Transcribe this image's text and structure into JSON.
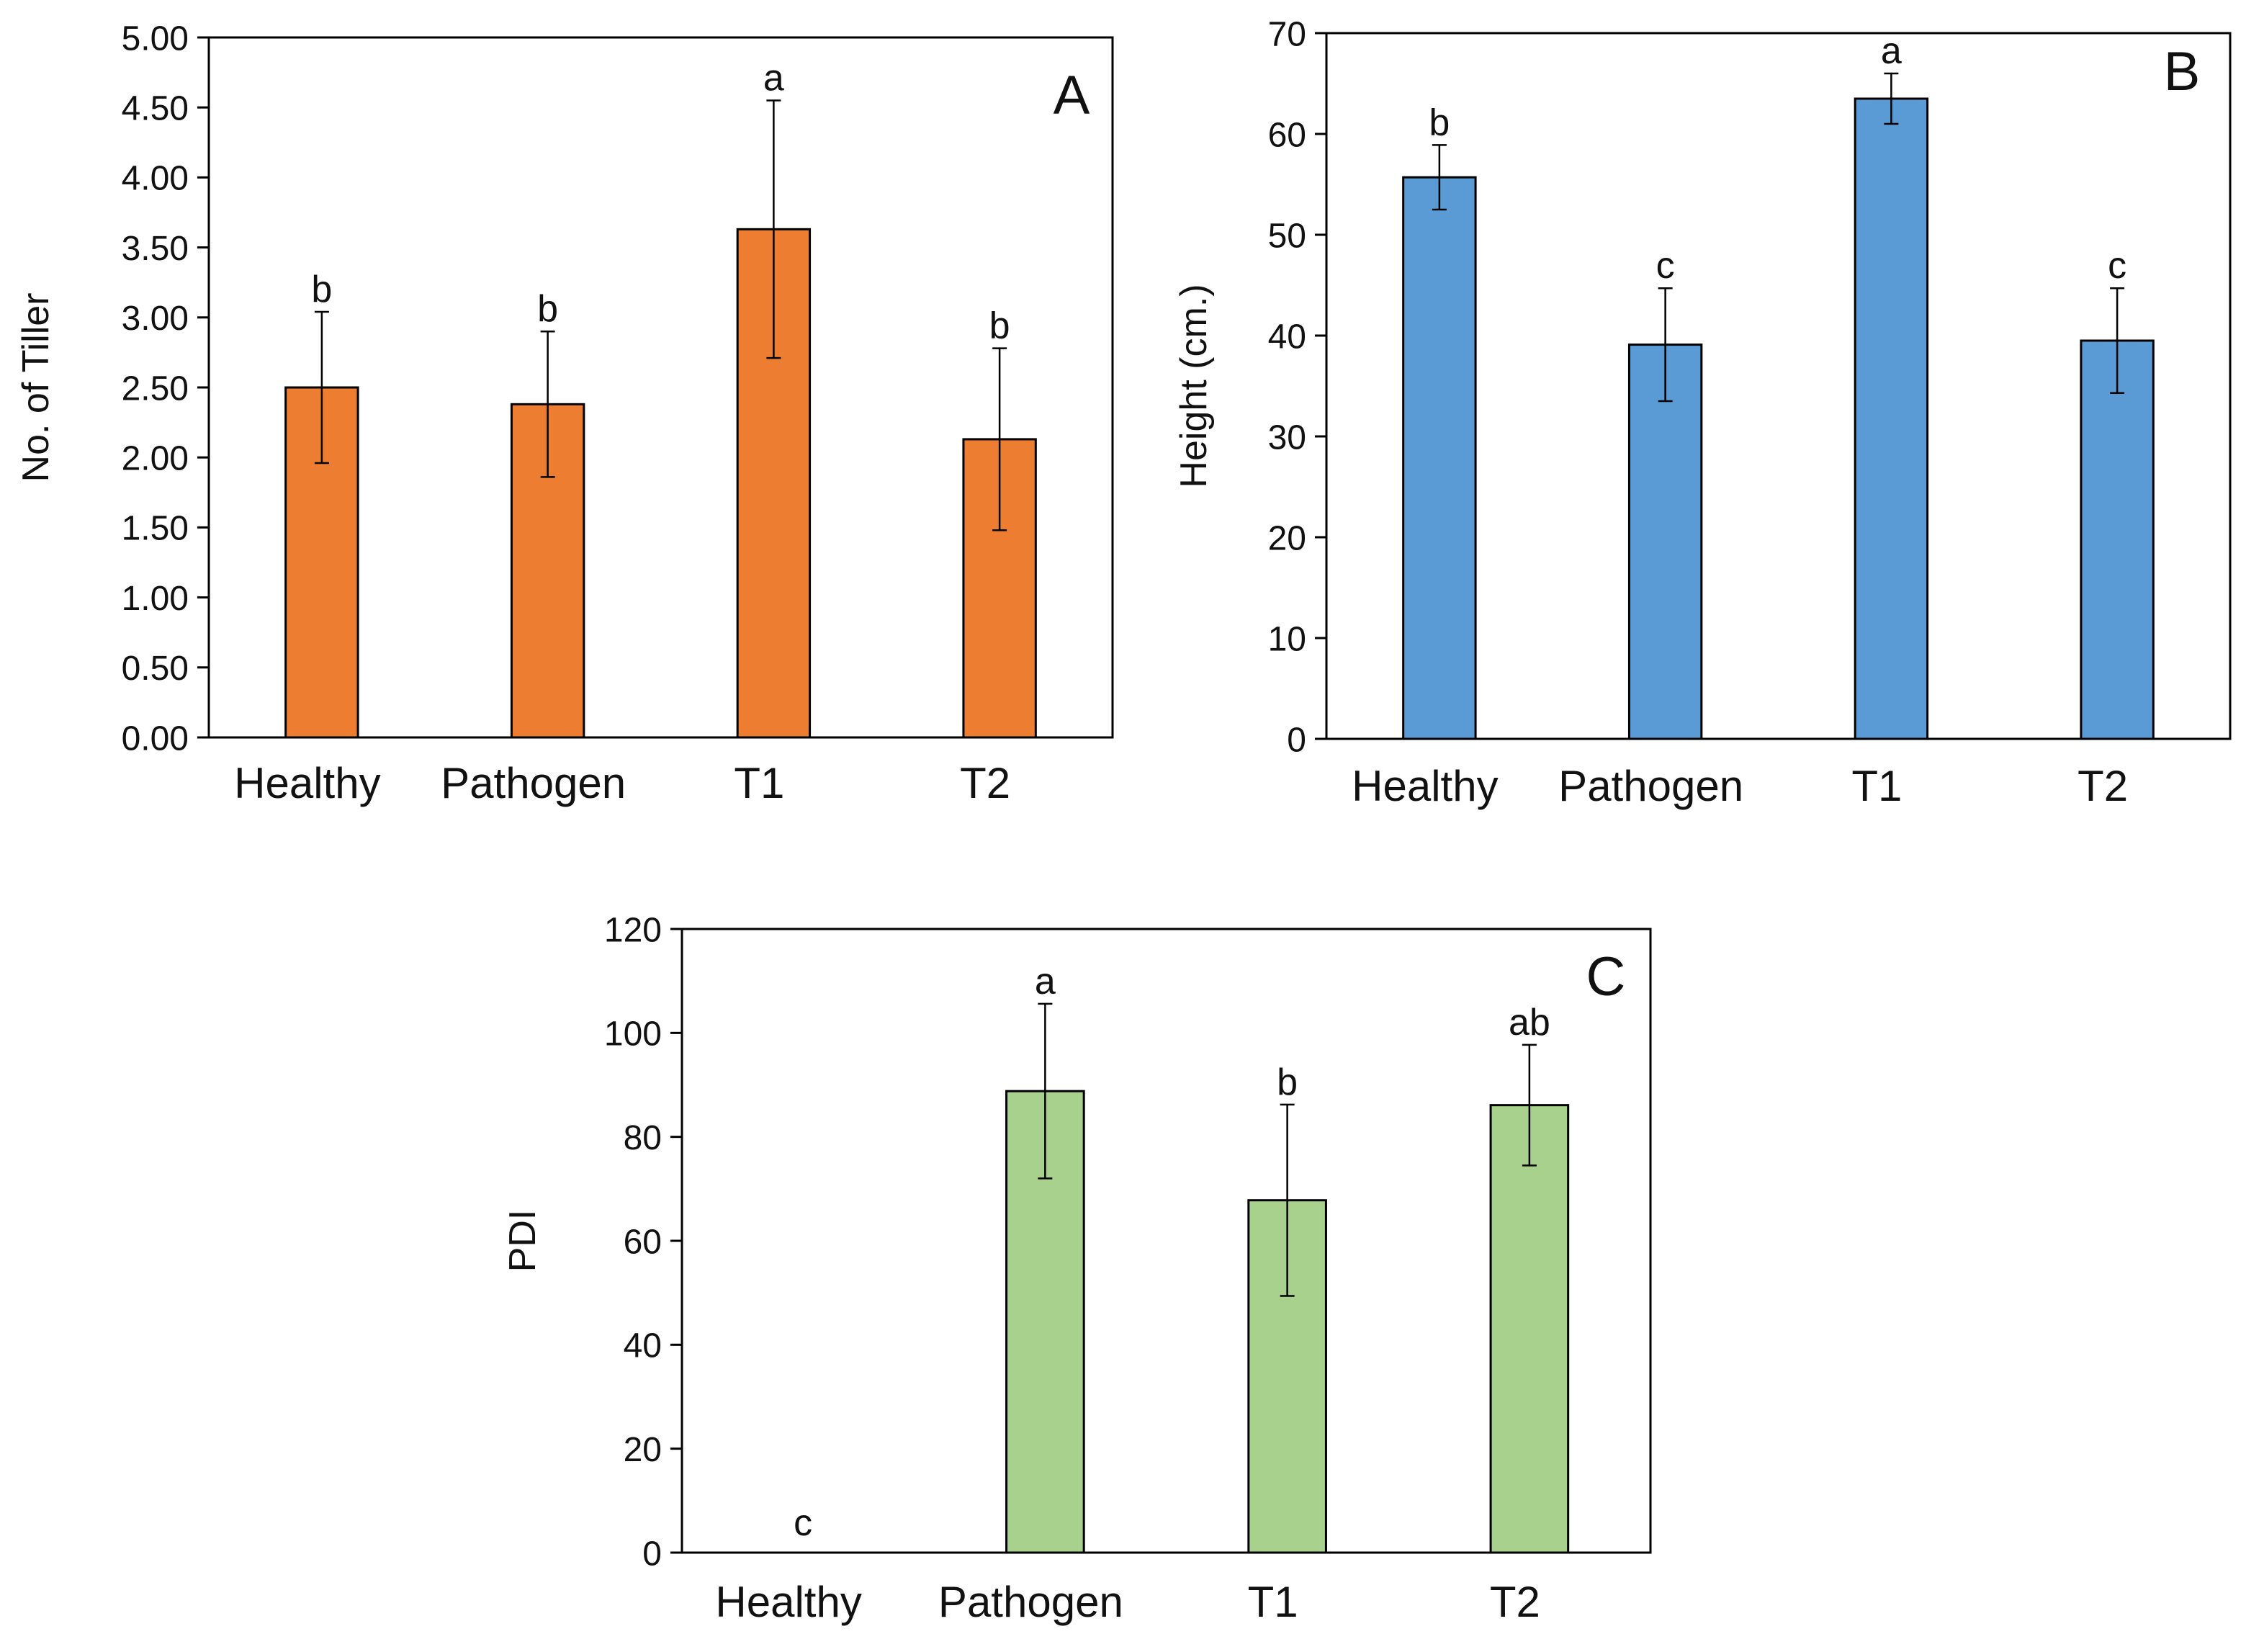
{
  "chart_data": [
    {
      "type": "bar",
      "panel_label": "A",
      "ylabel": "No. of Tiller",
      "xlabel": "",
      "categories": [
        "Healthy",
        "Pathogen",
        "T1",
        "T2"
      ],
      "values": [
        2.5,
        2.38,
        3.63,
        2.13
      ],
      "errors": [
        0.54,
        0.52,
        0.92,
        0.65
      ],
      "significance": [
        "b",
        "b",
        "a",
        "b"
      ],
      "ylim": [
        0,
        5
      ],
      "yticks": [
        0,
        0.5,
        1,
        1.5,
        2,
        2.5,
        3,
        3.5,
        4,
        4.5,
        5
      ],
      "ytick_labels": [
        "0.00",
        "0.50",
        "1.00",
        "1.50",
        "2.00",
        "2.50",
        "3.00",
        "3.50",
        "4.00",
        "4.50",
        "5.00"
      ],
      "color": "#ED7D31"
    },
    {
      "type": "bar",
      "panel_label": "B",
      "ylabel": "Height (cm.)",
      "xlabel": "",
      "categories": [
        "Healthy",
        "Pathogen",
        "T1",
        "T2"
      ],
      "values": [
        55.7,
        39.1,
        63.5,
        39.5
      ],
      "errors": [
        3.2,
        5.6,
        2.5,
        5.2
      ],
      "significance": [
        "b",
        "c",
        "a",
        "c"
      ],
      "ylim": [
        0,
        70
      ],
      "yticks": [
        0,
        10,
        20,
        30,
        40,
        50,
        60,
        70
      ],
      "ytick_labels": [
        "0",
        "10",
        "20",
        "30",
        "40",
        "50",
        "60",
        "70"
      ],
      "color": "#5B9BD5"
    },
    {
      "type": "bar",
      "panel_label": "C",
      "ylabel": "PDI",
      "xlabel": "",
      "categories": [
        "Healthy",
        "Pathogen",
        "T1",
        "T2"
      ],
      "values": [
        0,
        88.8,
        67.8,
        86.1
      ],
      "errors": [
        0,
        16.8,
        18.4,
        11.6
      ],
      "significance": [
        "c",
        "a",
        "b",
        "ab"
      ],
      "ylim": [
        0,
        120
      ],
      "yticks": [
        0,
        20,
        40,
        60,
        80,
        100,
        120
      ],
      "ytick_labels": [
        "0",
        "20",
        "40",
        "60",
        "80",
        "100",
        "120"
      ],
      "color": "#A9D18E"
    }
  ]
}
